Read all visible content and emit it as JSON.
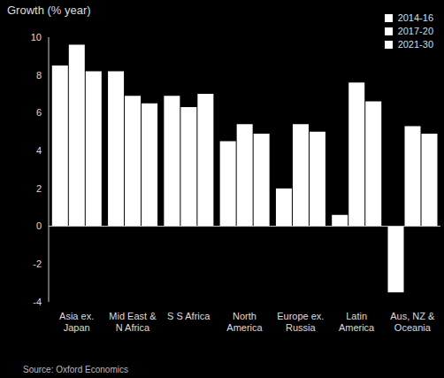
{
  "chart_data": {
    "type": "bar",
    "title": "Growth (% year)",
    "annotations": [
      "Source: Oxford Economics"
    ],
    "categories": [
      "Asia ex. Japan",
      "Mid East & N Africa",
      "S S Africa",
      "North America",
      "Europe ex. Russia",
      "Latin America",
      "Aus, NZ & Oceania"
    ],
    "series": [
      {
        "name": "2014-16",
        "color": "#ffffff",
        "values": [
          8.5,
          8.2,
          6.9,
          4.5,
          2.0,
          0.6,
          -3.5
        ]
      },
      {
        "name": "2017-20",
        "color": "#ffffff",
        "values": [
          9.6,
          6.9,
          6.3,
          5.4,
          5.4,
          7.6,
          5.3
        ]
      },
      {
        "name": "2021-30",
        "color": "#ffffff",
        "values": [
          8.2,
          6.5,
          7.0,
          4.9,
          5.0,
          6.6,
          4.9
        ]
      }
    ],
    "ylim": [
      -4,
      10
    ],
    "yticks": [
      -4,
      -2,
      0,
      2,
      4,
      6,
      8,
      10
    ],
    "grid": false,
    "legend": "top-right"
  }
}
